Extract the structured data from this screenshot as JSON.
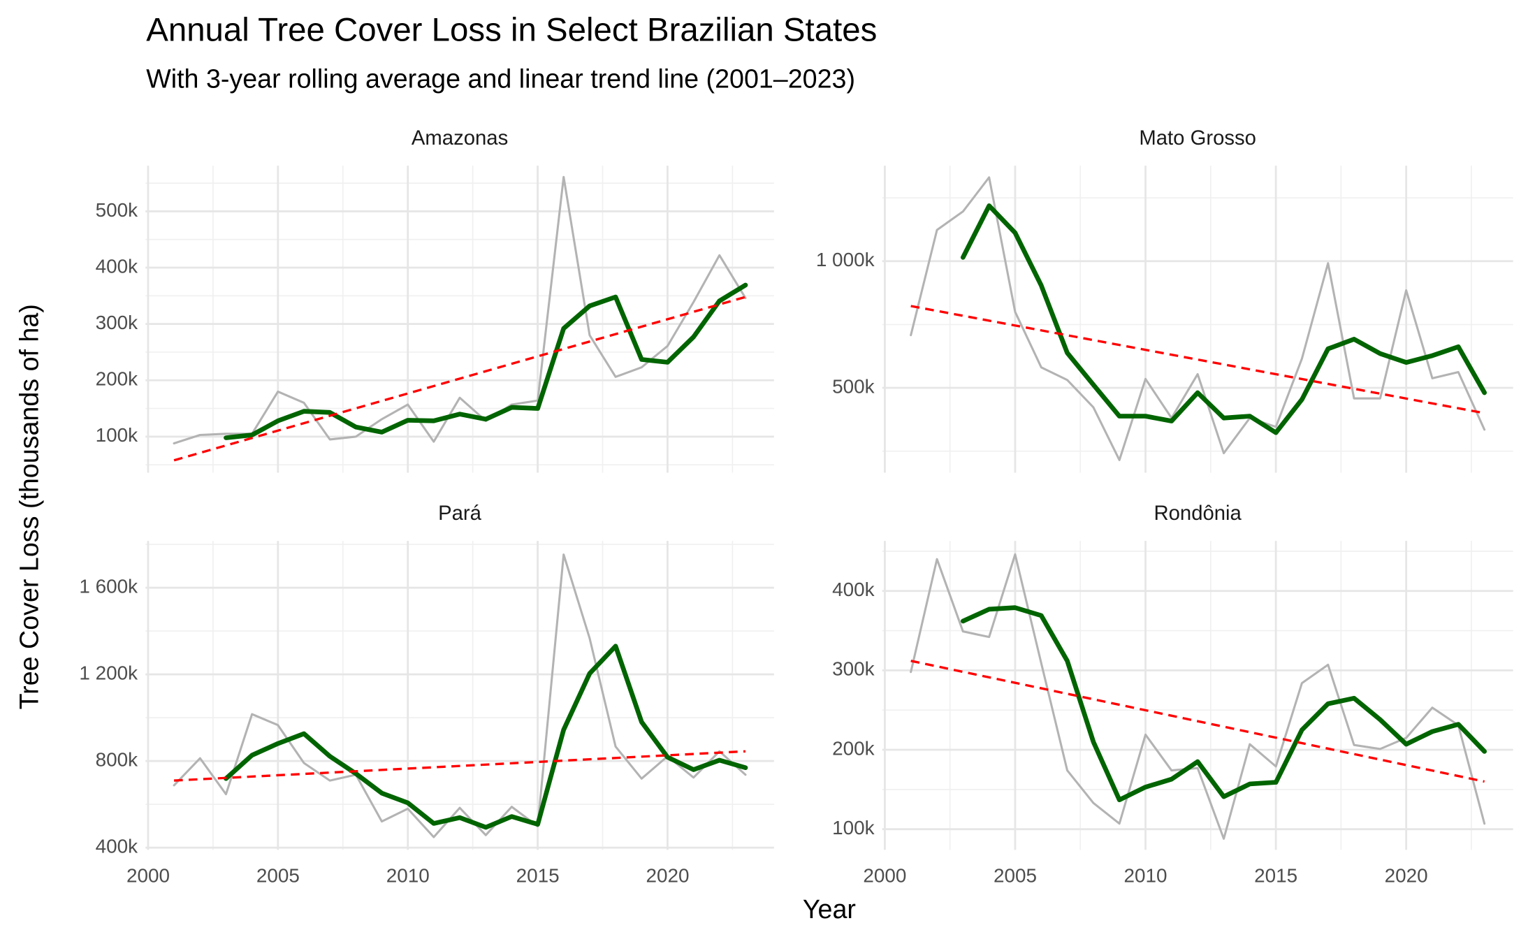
{
  "title": "Annual Tree Cover Loss in Select Brazilian States",
  "subtitle": "With 3-year rolling average and linear trend line (2001–2023)",
  "x_label": "Year",
  "y_label": "Tree Cover Loss (thousands of ha)",
  "chart_data": [
    {
      "type": "line",
      "title": "Amazonas",
      "x": [
        2001,
        2002,
        2003,
        2004,
        2005,
        2006,
        2007,
        2008,
        2009,
        2010,
        2011,
        2012,
        2013,
        2014,
        2015,
        2016,
        2017,
        2018,
        2019,
        2020,
        2021,
        2022,
        2023
      ],
      "series": [
        {
          "color": "#b3b3b3",
          "values": [
            88,
            103,
            105,
            105,
            180,
            160,
            95,
            100,
            131,
            157,
            91,
            169,
            128,
            157,
            164,
            561,
            280,
            206,
            223,
            261,
            339,
            422,
            346
          ]
        },
        {
          "color": "#006400",
          "values": [
            null,
            null,
            98,
            103,
            128,
            145,
            143,
            117,
            108,
            129,
            128,
            140,
            131,
            152,
            150,
            292,
            332,
            348,
            237,
            232,
            277,
            341,
            369
          ]
        },
        {
          "color": "#ff0000",
          "dashed": true,
          "x": [
            2001,
            2023
          ],
          "values": [
            58,
            348
          ]
        }
      ],
      "xlim": [
        1999.9,
        2024.1
      ],
      "xticks": [
        2000,
        2005,
        2010,
        2015,
        2020
      ],
      "ylim": [
        36,
        581
      ],
      "yticks": [
        {
          "value": 100,
          "label": "100k"
        },
        {
          "value": 200,
          "label": "200k"
        },
        {
          "value": 300,
          "label": "300k"
        },
        {
          "value": 400,
          "label": "400k"
        },
        {
          "value": 500,
          "label": "500k"
        }
      ],
      "grid": true
    },
    {
      "type": "line",
      "title": "Mato Grosso",
      "x": [
        2001,
        2002,
        2003,
        2004,
        2005,
        2006,
        2007,
        2008,
        2009,
        2010,
        2011,
        2012,
        2013,
        2014,
        2015,
        2016,
        2017,
        2018,
        2019,
        2020,
        2021,
        2022,
        2023
      ],
      "series": [
        {
          "color": "#b3b3b3",
          "values": [
            708,
            1123,
            1196,
            1331,
            800,
            581,
            531,
            423,
            215,
            535,
            381,
            554,
            242,
            381,
            346,
            615,
            992,
            458,
            458,
            885,
            538,
            562,
            335
          ]
        },
        {
          "color": "#006400",
          "values": [
            null,
            null,
            1015,
            1219,
            1112,
            904,
            638,
            512,
            388,
            388,
            369,
            481,
            381,
            388,
            323,
            454,
            654,
            692,
            635,
            600,
            627,
            662,
            481
          ]
        },
        {
          "color": "#ff0000",
          "dashed": true,
          "x": [
            2001,
            2023
          ],
          "values": [
            823,
            400
          ]
        }
      ],
      "xlim": [
        1999.9,
        2024.1
      ],
      "xticks": [
        2000,
        2005,
        2010,
        2015,
        2020
      ],
      "ylim": [
        165,
        1377
      ],
      "yticks": [
        {
          "value": 500,
          "label": "500k"
        },
        {
          "value": 1000,
          "label": "1 000k"
        }
      ],
      "grid": true
    },
    {
      "type": "line",
      "title": "Pará",
      "x": [
        2001,
        2002,
        2003,
        2004,
        2005,
        2006,
        2007,
        2008,
        2009,
        2010,
        2011,
        2012,
        2013,
        2014,
        2015,
        2016,
        2017,
        2018,
        2019,
        2020,
        2021,
        2022,
        2023
      ],
      "series": [
        {
          "color": "#b3b3b3",
          "values": [
            688,
            813,
            647,
            1016,
            966,
            791,
            710,
            737,
            521,
            580,
            449,
            584,
            458,
            589,
            499,
            1753,
            1366,
            867,
            719,
            822,
            724,
            845,
            737
          ]
        },
        {
          "color": "#006400",
          "values": [
            null,
            null,
            719,
            827,
            881,
            926,
            822,
            742,
            652,
            607,
            512,
            539,
            494,
            544,
            508,
            944,
            1204,
            1330,
            980,
            818,
            760,
            804,
            769
          ]
        },
        {
          "color": "#ff0000",
          "dashed": true,
          "x": [
            2001,
            2023
          ],
          "values": [
            710,
            845
          ]
        }
      ],
      "xlim": [
        1999.9,
        2024.1
      ],
      "xticks": [
        2000,
        2005,
        2010,
        2015,
        2020
      ],
      "ylim": [
        390,
        1816
      ],
      "yticks": [
        {
          "value": 400,
          "label": "400k"
        },
        {
          "value": 800,
          "label": "800k"
        },
        {
          "value": 1200,
          "label": "1 200k"
        },
        {
          "value": 1600,
          "label": "1 600k"
        }
      ],
      "grid": true
    },
    {
      "type": "line",
      "title": "Rondônia",
      "x": [
        2001,
        2002,
        2003,
        2004,
        2005,
        2006,
        2007,
        2008,
        2009,
        2010,
        2011,
        2012,
        2013,
        2014,
        2015,
        2016,
        2017,
        2018,
        2019,
        2020,
        2021,
        2022,
        2023
      ],
      "series": [
        {
          "color": "#b3b3b3",
          "values": [
            298,
            440,
            349,
            342,
            446,
            309,
            174,
            133,
            107,
            219,
            174,
            177,
            88,
            207,
            179,
            284,
            307,
            206,
            201,
            215,
            253,
            231,
            107
          ]
        },
        {
          "color": "#006400",
          "values": [
            null,
            null,
            362,
            377,
            379,
            369,
            312,
            210,
            137,
            153,
            163,
            185,
            141,
            157,
            159,
            225,
            258,
            265,
            238,
            207,
            223,
            232,
            198
          ]
        },
        {
          "color": "#ff0000",
          "dashed": true,
          "x": [
            2001,
            2023
          ],
          "values": [
            312,
            160
          ]
        }
      ],
      "xlim": [
        1999.9,
        2024.1
      ],
      "xticks": [
        2000,
        2005,
        2010,
        2015,
        2020
      ],
      "ylim": [
        74,
        463
      ],
      "yticks": [
        {
          "value": 100,
          "label": "100k"
        },
        {
          "value": 200,
          "label": "200k"
        },
        {
          "value": 300,
          "label": "300k"
        },
        {
          "value": 400,
          "label": "400k"
        }
      ],
      "grid": true
    }
  ]
}
